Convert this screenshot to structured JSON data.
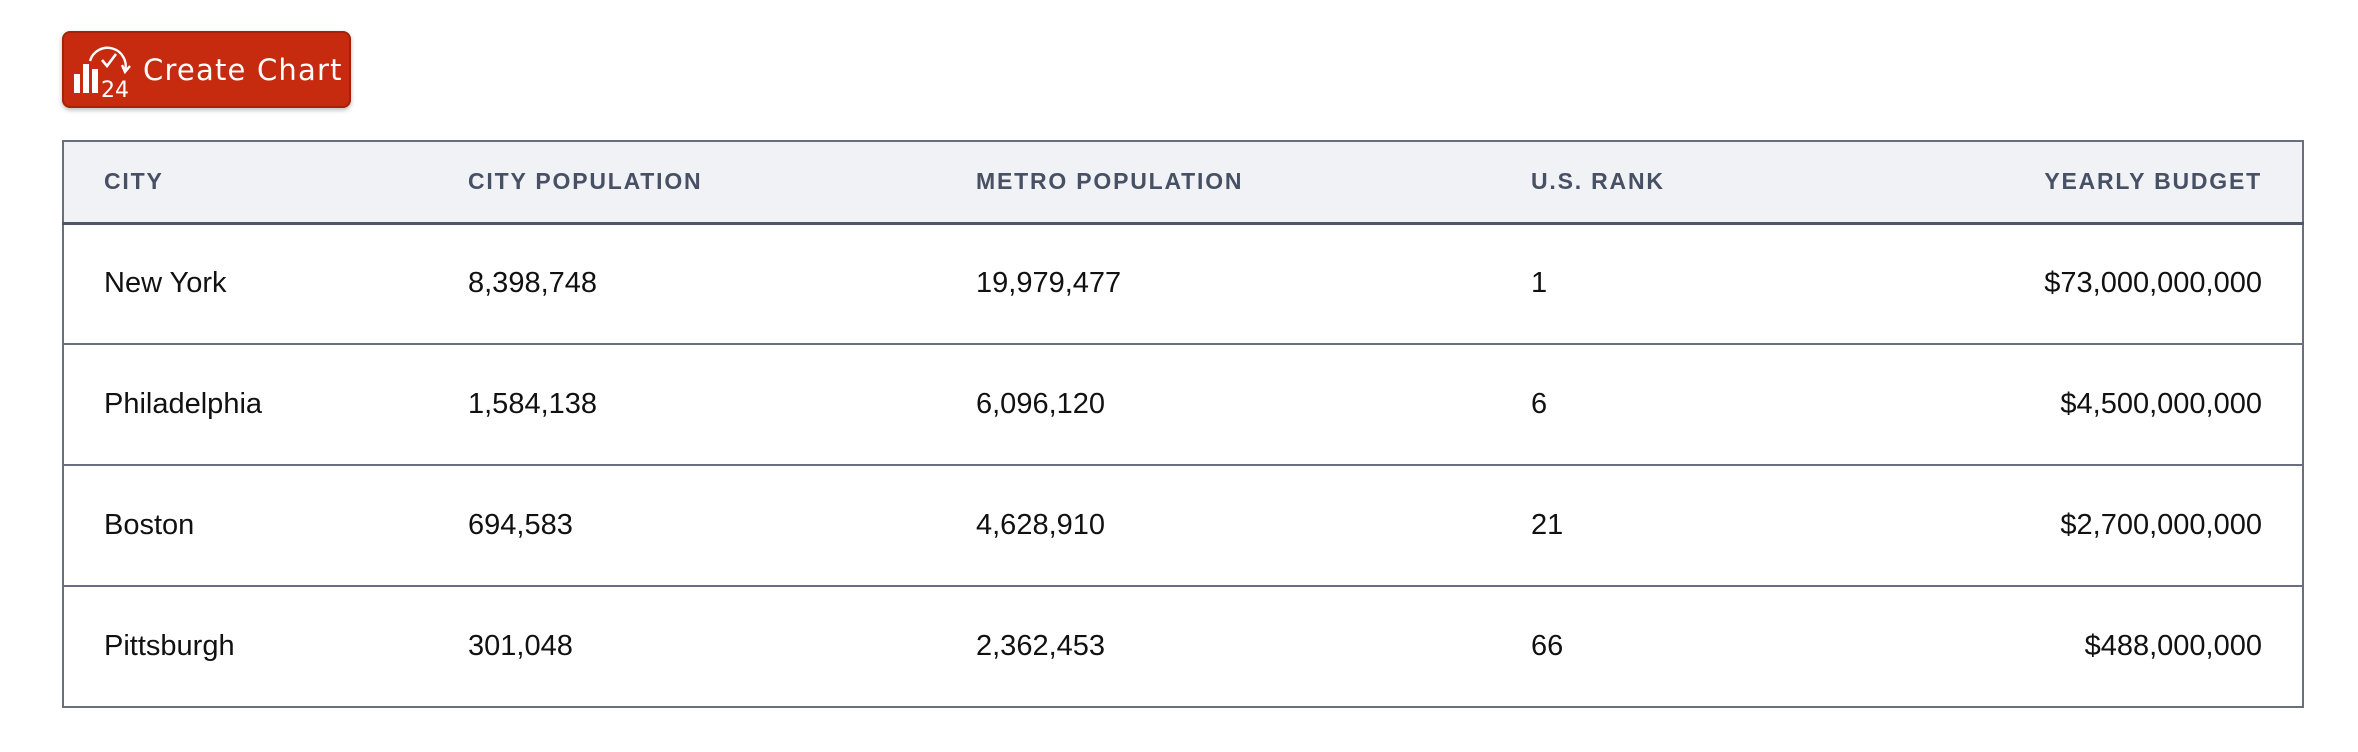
{
  "toolbar": {
    "create_chart_label": "Create Chart",
    "logo_icon": "chart24-logo-icon",
    "button_color": "#c62a0f"
  },
  "table": {
    "headers": [
      "CITY",
      "CITY POPULATION",
      "METRO POPULATION",
      "U.S. RANK",
      "YEARLY BUDGET"
    ],
    "rows": [
      [
        "New York",
        "8,398,748",
        "19,979,477",
        "1",
        "$73,000,000,000"
      ],
      [
        "Philadelphia",
        "1,584,138",
        "6,096,120",
        "6",
        "$4,500,000,000"
      ],
      [
        "Boston",
        "694,583",
        "4,628,910",
        "21",
        "$2,700,000,000"
      ],
      [
        "Pittsburgh",
        "301,048",
        "2,362,453",
        "66",
        "$488,000,000"
      ]
    ]
  }
}
